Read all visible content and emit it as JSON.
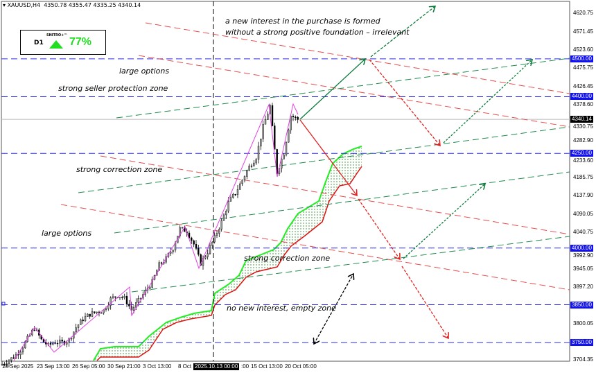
{
  "header": {
    "symbol": "XAUUSD,H4",
    "ohlc": "4350.78 4355.47 4335.25 4340.14"
  },
  "indicator": {
    "timeframe": "D1",
    "name": "SNITRO+™",
    "direction": "up",
    "value": "77%",
    "color": "#22dd22"
  },
  "annotations": [
    "a new interest in the purchase is formed",
    "without a strong positive foundation – irrelevant",
    "large options",
    "strong seller protection zone",
    "strong correction zone",
    "large options",
    "strong correction zone",
    "no new interest, empty zone"
  ],
  "chart_data": {
    "type": "candlestick",
    "symbol": "XAUUSD",
    "timeframe": "H4",
    "ylim": [
      3704.35,
      4620.75
    ],
    "y_ticks": [
      "4620.75",
      "4571.45",
      "4523.60",
      "4475.75",
      "4426.45",
      "4378.60",
      "4330.75",
      "4282.90",
      "4233.60",
      "4185.75",
      "4137.90",
      "4090.05",
      "4040.75",
      "3992.90",
      "3945.05",
      "3897.20",
      "3800.05",
      "3704.35"
    ],
    "x_ticks": [
      "18 Sep 2025",
      "23 Sep 13:00",
      "26 Sep 05:00",
      "30 Sep 21:00",
      "3 Oct 13:00",
      "8 Oct",
      "15 Oct 13:00",
      "20 Oct 05:00"
    ],
    "crosshair_time": "2025.10.13 00:00",
    "crosshair_time_tail": ":00",
    "current_price": "4340.14",
    "horizontal_levels": [
      "4500.00",
      "4400.00",
      "4250.00",
      "4000.00",
      "3850.00",
      "3750.00"
    ],
    "approx_close_path": [
      3690,
      3700,
      3712,
      3730,
      3760,
      3789,
      3757,
      3742,
      3752,
      3750,
      3757,
      3790,
      3812,
      3825,
      3831,
      3835,
      3865,
      3875,
      3867,
      3836,
      3860,
      3885,
      3910,
      3955,
      3972,
      4000,
      4051,
      4045,
      4010,
      3960,
      3990,
      4027,
      4069,
      4120,
      4145,
      4180,
      4215,
      4240,
      4320,
      4375,
      4200,
      4252,
      4350,
      4340
    ],
    "colors": {
      "levels": "#2a2af0",
      "resistance_lines": "#e84c4c",
      "support_lines": "#1f8a4c",
      "zigzag": "#e040e0",
      "cloud_upper": "#22ee22",
      "cloud_lower": "#e01010"
    }
  }
}
